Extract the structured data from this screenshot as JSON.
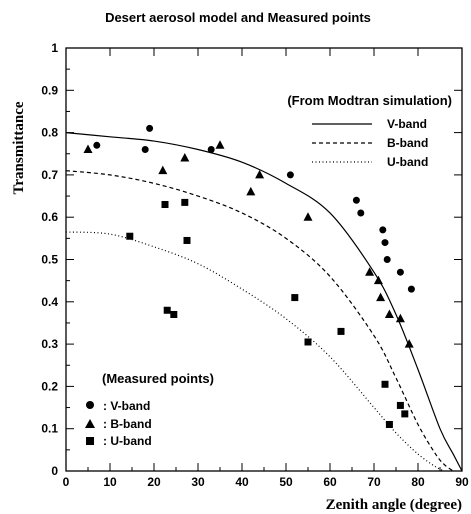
{
  "chart_data": {
    "type": "scatter",
    "title": "Desert aerosol model and Measured points",
    "xlabel": "Zenith angle (degree)",
    "ylabel": "Transmittance",
    "xlim": [
      0,
      90
    ],
    "ylim": [
      0,
      1
    ],
    "x_ticks": [
      "0",
      "10",
      "20",
      "30",
      "40",
      "50",
      "60",
      "70",
      "80",
      "90"
    ],
    "y_ticks": [
      "0",
      "0.1",
      "0.2",
      "0.3",
      "0.4",
      "0.5",
      "0.6",
      "0.7",
      "0.8",
      "0.9",
      "1"
    ],
    "grid": false,
    "simulation_legend": {
      "heading": "(From Modtran simulation)",
      "entries": [
        "V-band",
        "B-band",
        "U-band"
      ]
    },
    "measured_legend": {
      "heading": "(Measured points)",
      "entries": [
        ": V-band",
        ": B-band",
        ": U-band"
      ]
    },
    "lines": [
      {
        "name": "V-band",
        "style": "solid",
        "x": [
          0,
          10,
          20,
          30,
          40,
          50,
          60,
          70,
          75,
          80,
          85,
          88,
          90
        ],
        "y": [
          0.8,
          0.79,
          0.78,
          0.76,
          0.73,
          0.68,
          0.61,
          0.47,
          0.37,
          0.24,
          0.1,
          0.04,
          0.0
        ]
      },
      {
        "name": "B-band",
        "style": "dashed",
        "x": [
          0,
          10,
          20,
          30,
          40,
          50,
          60,
          70,
          75,
          80,
          84,
          86,
          88
        ],
        "y": [
          0.71,
          0.7,
          0.68,
          0.65,
          0.61,
          0.55,
          0.46,
          0.32,
          0.22,
          0.11,
          0.04,
          0.015,
          0.0
        ]
      },
      {
        "name": "U-band",
        "style": "dotted",
        "x": [
          0,
          10,
          20,
          30,
          40,
          50,
          60,
          70,
          75,
          80,
          84,
          86
        ],
        "y": [
          0.565,
          0.56,
          0.53,
          0.49,
          0.43,
          0.36,
          0.27,
          0.15,
          0.09,
          0.04,
          0.01,
          0.0
        ]
      }
    ],
    "series": [
      {
        "name": "V-band",
        "marker": "circle",
        "x": [
          7,
          18,
          19,
          33,
          51,
          66,
          67,
          72,
          72.5,
          73,
          76,
          78.5
        ],
        "y": [
          0.77,
          0.76,
          0.81,
          0.76,
          0.7,
          0.64,
          0.61,
          0.57,
          0.54,
          0.5,
          0.47,
          0.43
        ]
      },
      {
        "name": "B-band",
        "marker": "triangle",
        "x": [
          5,
          22,
          27,
          35,
          42,
          44,
          55,
          69,
          71,
          71.5,
          73.5,
          76,
          78
        ],
        "y": [
          0.76,
          0.71,
          0.74,
          0.77,
          0.66,
          0.7,
          0.6,
          0.47,
          0.45,
          0.41,
          0.37,
          0.36,
          0.3
        ]
      },
      {
        "name": "U-band",
        "marker": "square",
        "x": [
          14.5,
          22.5,
          23,
          24.5,
          27,
          27.5,
          52,
          55,
          62.5,
          72.5,
          73.5,
          76,
          77
        ],
        "y": [
          0.555,
          0.63,
          0.38,
          0.37,
          0.635,
          0.545,
          0.41,
          0.305,
          0.33,
          0.205,
          0.11,
          0.155,
          0.135
        ]
      }
    ]
  }
}
